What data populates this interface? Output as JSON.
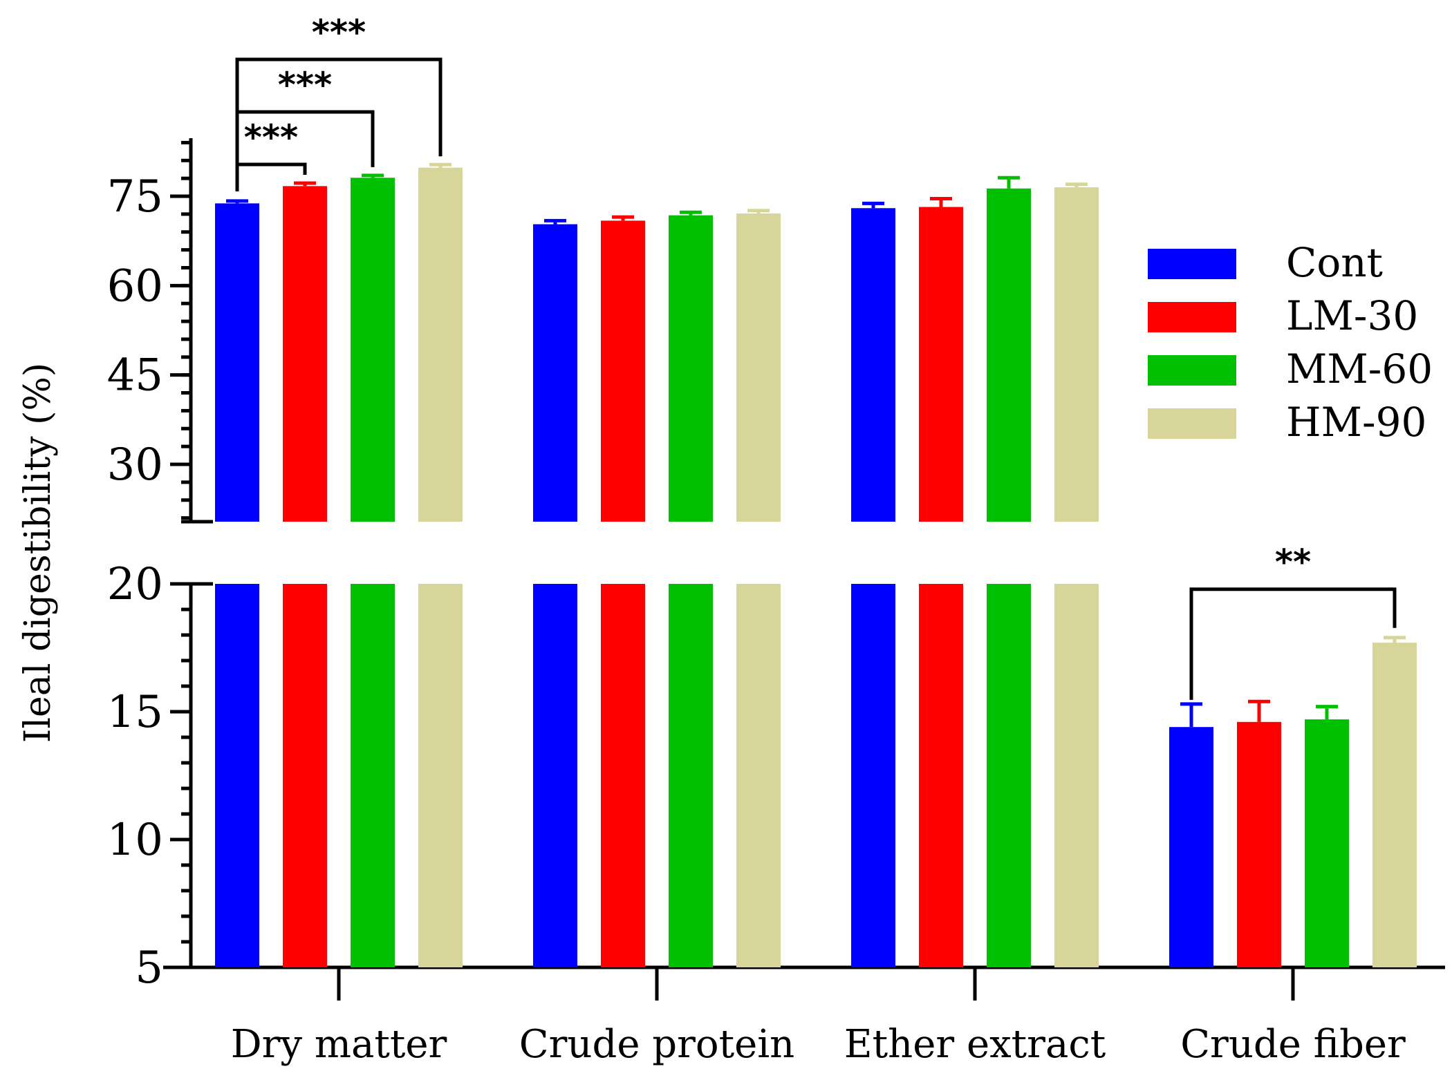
{
  "chart_data": {
    "type": "bar",
    "title": "",
    "xlabel": "",
    "ylabel": "Ileal digestibility (%)",
    "categories": [
      "Dry matter",
      "Crude protein",
      "Ether extract",
      "Crude fiber"
    ],
    "series": [
      {
        "name": "Cont",
        "color": "#0000ff",
        "values": [
          73.8,
          70.3,
          73.0,
          14.4
        ],
        "errors": [
          0.4,
          0.6,
          0.8,
          0.9
        ]
      },
      {
        "name": "LM-30",
        "color": "#ff0000",
        "values": [
          76.7,
          70.9,
          73.2,
          14.6
        ],
        "errors": [
          0.5,
          0.6,
          1.4,
          0.8
        ]
      },
      {
        "name": "MM-60",
        "color": "#00c000",
        "values": [
          78.1,
          71.8,
          76.3,
          14.7
        ],
        "errors": [
          0.4,
          0.5,
          1.8,
          0.5
        ]
      },
      {
        "name": "HM-90",
        "color": "#d8d59b",
        "values": [
          79.8,
          72.1,
          76.5,
          17.7
        ],
        "errors": [
          0.5,
          0.5,
          0.5,
          0.2
        ]
      }
    ],
    "axis_break": {
      "upper_ylim": [
        20,
        85
      ],
      "upper_ticks": [
        30,
        45,
        60,
        75
      ],
      "lower_ylim": [
        5,
        20
      ],
      "lower_ticks": [
        5,
        10,
        15,
        20
      ]
    },
    "significance": [
      {
        "category": 0,
        "from": 0,
        "to": 1,
        "label": "***"
      },
      {
        "category": 0,
        "from": 0,
        "to": 2,
        "label": "***"
      },
      {
        "category": 0,
        "from": 0,
        "to": 3,
        "label": "***"
      },
      {
        "category": 3,
        "from": 0,
        "to": 3,
        "label": "**"
      }
    ],
    "legend_position": "right"
  }
}
